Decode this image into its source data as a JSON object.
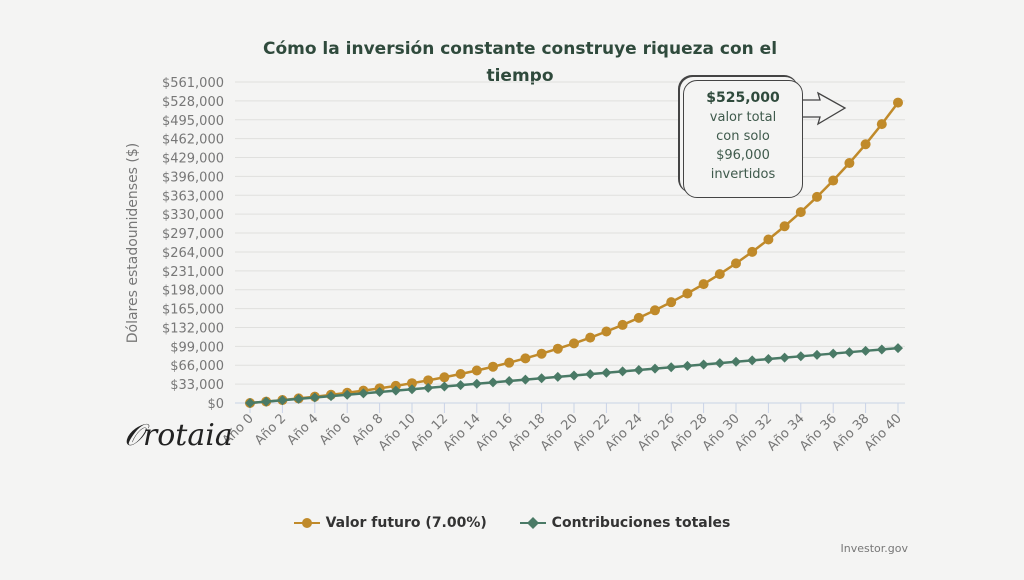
{
  "chart_data": {
    "type": "line",
    "title": "Cómo la inversión constante construye riqueza con el tiempo",
    "ylabel": "Dólares estadounidenses ($)",
    "xlabel": "",
    "x": [
      0,
      1,
      2,
      3,
      4,
      5,
      6,
      7,
      8,
      9,
      10,
      11,
      12,
      13,
      14,
      15,
      16,
      17,
      18,
      19,
      20,
      21,
      22,
      23,
      24,
      25,
      26,
      27,
      28,
      29,
      30,
      31,
      32,
      33,
      34,
      35,
      36,
      37,
      38,
      39,
      40
    ],
    "x_tick_labels": [
      "Año 0",
      "Año 2",
      "Año 4",
      "Año 6",
      "Año 8",
      "Año 10",
      "Año 12",
      "Año 14",
      "Año 16",
      "Año 18",
      "Año 20",
      "Año 22",
      "Año 24",
      "Año 26",
      "Año 28",
      "Año 30",
      "Año 32",
      "Año 34",
      "Año 36",
      "Año 38",
      "Año 40"
    ],
    "y_tick_labels": [
      "$0",
      "$33,000",
      "$66,000",
      "$99,000",
      "$132,000",
      "$165,000",
      "$198,000",
      "$231,000",
      "$264,000",
      "$297,000",
      "$330,000",
      "$363,000",
      "$396,000",
      "$429,000",
      "$462,000",
      "$495,000",
      "$528,000",
      "$561,000"
    ],
    "ylim": [
      0,
      561000
    ],
    "grid": true,
    "legend_position": "bottom",
    "series": [
      {
        "name": "Valor futuro (7.00%)",
        "color": "#c08a2a",
        "marker": "circle",
        "values": [
          0,
          2478,
          5136,
          7987,
          11043,
          14320,
          17834,
          21602,
          25642,
          29975,
          34621,
          39602,
          44944,
          50672,
          56814,
          63400,
          70462,
          78035,
          86155,
          94862,
          104198,
          114210,
          124946,
          136457,
          148801,
          162037,
          176230,
          191449,
          207769,
          225268,
          244032,
          264153,
          285728,
          308863,
          333671,
          360272,
          388797,
          419383,
          452181,
          487350,
          525061
        ]
      },
      {
        "name": "Contribuciones totales",
        "color": "#4a7a66",
        "marker": "diamond",
        "values": [
          0,
          2400,
          4800,
          7200,
          9600,
          12000,
          14400,
          16800,
          19200,
          21600,
          24000,
          26400,
          28800,
          31200,
          33600,
          36000,
          38400,
          40800,
          43200,
          45600,
          48000,
          50400,
          52800,
          55200,
          57600,
          60000,
          62400,
          64800,
          67200,
          69600,
          72000,
          74400,
          76800,
          79200,
          81600,
          84000,
          86400,
          88800,
          91200,
          93600,
          96000
        ]
      }
    ],
    "annotation": {
      "amount": "$525,000",
      "lines": [
        "valor total",
        "con solo",
        "$96,000",
        "invertidos"
      ]
    }
  },
  "source": "Investor.gov",
  "logo_text": "Orotaia"
}
